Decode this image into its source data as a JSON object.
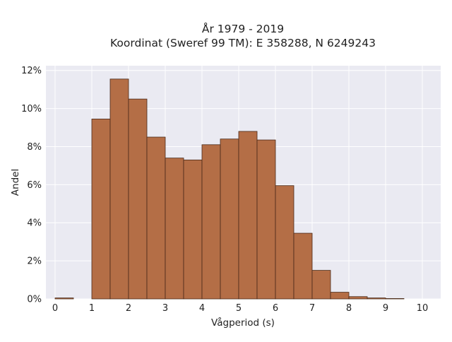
{
  "chart_data": {
    "type": "bar",
    "title_line1": "År 1979 - 2019",
    "title_line2": "Koordinat (Sweref 99 TM): E 358288, N 6249243",
    "xlabel": "Vågperiod (s)",
    "ylabel": "Andel",
    "xlim": [
      -0.25,
      10.5
    ],
    "ylim": [
      0,
      12.25
    ],
    "x_ticks": [
      0,
      1,
      2,
      3,
      4,
      5,
      6,
      7,
      8,
      9,
      10
    ],
    "y_ticks": [
      0,
      2,
      4,
      6,
      8,
      10,
      12
    ],
    "y_tick_labels": [
      "0%",
      "2%",
      "4%",
      "6%",
      "8%",
      "10%",
      "12%"
    ],
    "bin_width": 0.5,
    "bins": [
      {
        "x0": 0.0,
        "value": 0.05
      },
      {
        "x0": 0.5,
        "value": 0.0
      },
      {
        "x0": 1.0,
        "value": 9.45
      },
      {
        "x0": 1.5,
        "value": 11.55
      },
      {
        "x0": 2.0,
        "value": 10.5
      },
      {
        "x0": 2.5,
        "value": 8.5
      },
      {
        "x0": 3.0,
        "value": 7.4
      },
      {
        "x0": 3.5,
        "value": 7.3
      },
      {
        "x0": 4.0,
        "value": 8.1
      },
      {
        "x0": 4.5,
        "value": 8.4
      },
      {
        "x0": 5.0,
        "value": 8.8
      },
      {
        "x0": 5.5,
        "value": 8.35
      },
      {
        "x0": 6.0,
        "value": 5.95
      },
      {
        "x0": 6.5,
        "value": 3.45
      },
      {
        "x0": 7.0,
        "value": 1.5
      },
      {
        "x0": 7.5,
        "value": 0.35
      },
      {
        "x0": 8.0,
        "value": 0.12
      },
      {
        "x0": 8.5,
        "value": 0.05
      },
      {
        "x0": 9.0,
        "value": 0.02
      }
    ],
    "grid": true,
    "colors": {
      "bar_fill": "#b46e46",
      "bar_stroke": "#4a2a18",
      "plot_background": "#eaeaf2",
      "grid": "#ffffff"
    }
  }
}
